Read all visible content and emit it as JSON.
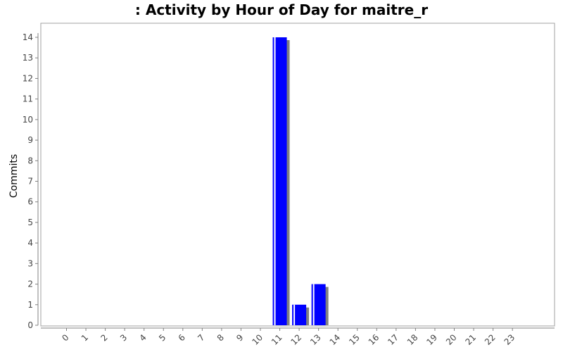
{
  "chart_data": {
    "type": "bar",
    "title": ": Activity by Hour of Day for maitre_r",
    "xlabel": "",
    "ylabel": "Commits",
    "categories": [
      "0",
      "1",
      "2",
      "3",
      "4",
      "5",
      "6",
      "7",
      "8",
      "9",
      "10",
      "11",
      "12",
      "13",
      "14",
      "15",
      "16",
      "17",
      "18",
      "19",
      "20",
      "21",
      "22",
      "23"
    ],
    "values": [
      0,
      0,
      0,
      0,
      0,
      0,
      0,
      0,
      0,
      0,
      0,
      14,
      1,
      2,
      0,
      0,
      0,
      0,
      0,
      0,
      0,
      0,
      0,
      0
    ],
    "ylim": [
      0,
      14
    ],
    "yticks": [
      0,
      1,
      2,
      3,
      4,
      5,
      6,
      7,
      8,
      9,
      10,
      11,
      12,
      13,
      14
    ],
    "grid": false,
    "legend": "none",
    "colors": {
      "bar": "#0000ff",
      "shadow": "#808080",
      "axis": "#808080"
    }
  }
}
